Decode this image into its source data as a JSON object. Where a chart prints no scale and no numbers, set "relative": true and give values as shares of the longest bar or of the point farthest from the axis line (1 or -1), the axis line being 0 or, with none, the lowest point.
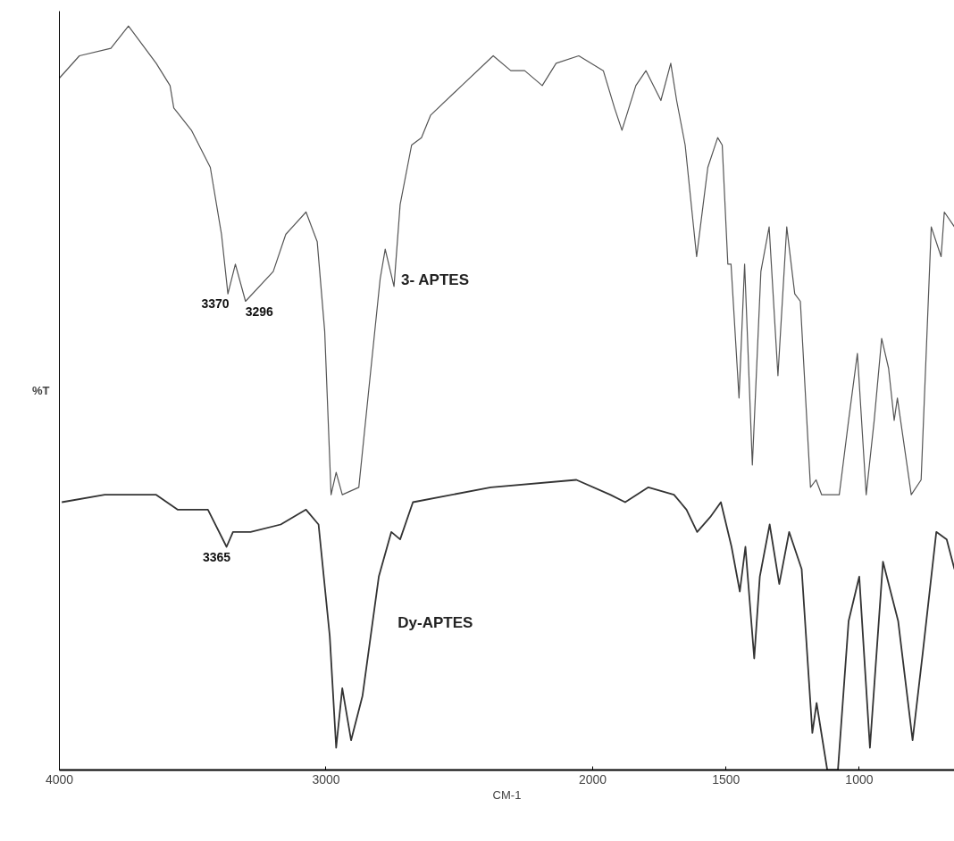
{
  "chart_data": {
    "type": "line",
    "relative": true,
    "xlabel": "CM-1",
    "ylabel": "%T",
    "xlim": [
      4000,
      643
    ],
    "xticks": [
      4000,
      3000,
      2000,
      1500,
      1000
    ],
    "grid": false,
    "marker": "none",
    "line_style": "solid",
    "series": [
      {
        "name": "3- APTES",
        "color": "#555555",
        "x": [
          4000,
          3925,
          3807,
          3741,
          3637,
          3585,
          3571,
          3505,
          3434,
          3392,
          3368,
          3340,
          3302,
          3198,
          3151,
          3075,
          3033,
          3005,
          2981,
          2962,
          2939,
          2877,
          2840,
          2797,
          2778,
          2745,
          2722,
          2679,
          2642,
          2608,
          2491,
          2373,
          2307,
          2255,
          2189,
          2137,
          2052,
          1960,
          1918,
          1890,
          1838,
          1800,
          1744,
          1707,
          1685,
          1653,
          1610,
          1568,
          1531,
          1514,
          1493,
          1481,
          1451,
          1430,
          1418,
          1401,
          1369,
          1338,
          1305,
          1272,
          1242,
          1221,
          1183,
          1162,
          1141,
          1075,
          1040,
          1007,
          974,
          944,
          916,
          890,
          869,
          857,
          805,
          768,
          730,
          693,
          681,
          643
        ],
        "values": [
          0.93,
          0.96,
          0.97,
          1.0,
          0.95,
          0.92,
          0.89,
          0.86,
          0.81,
          0.72,
          0.64,
          0.68,
          0.63,
          0.67,
          0.72,
          0.75,
          0.71,
          0.59,
          0.37,
          0.4,
          0.37,
          0.38,
          0.51,
          0.66,
          0.7,
          0.65,
          0.76,
          0.84,
          0.85,
          0.88,
          0.92,
          0.96,
          0.94,
          0.94,
          0.92,
          0.95,
          0.96,
          0.94,
          0.89,
          0.86,
          0.92,
          0.94,
          0.9,
          0.95,
          0.9,
          0.84,
          0.69,
          0.81,
          0.85,
          0.84,
          0.68,
          0.68,
          0.5,
          0.68,
          0.57,
          0.41,
          0.67,
          0.73,
          0.53,
          0.73,
          0.64,
          0.63,
          0.38,
          0.39,
          0.37,
          0.37,
          0.47,
          0.56,
          0.37,
          0.47,
          0.58,
          0.54,
          0.47,
          0.5,
          0.37,
          0.39,
          0.73,
          0.69,
          0.75,
          0.73
        ]
      },
      {
        "name": "Dy-APTES",
        "color": "#333333",
        "x": [
          3991,
          3830,
          3637,
          3557,
          3443,
          3373,
          3349,
          3283,
          3170,
          3075,
          3028,
          2986,
          2962,
          2939,
          2906,
          2863,
          2802,
          2755,
          2722,
          2674,
          2382,
          2061,
          1934,
          1878,
          1791,
          1695,
          1648,
          1608,
          1559,
          1519,
          1479,
          1448,
          1427,
          1394,
          1373,
          1336,
          1300,
          1263,
          1216,
          1176,
          1160,
          1120,
          1080,
          1040,
          1000,
          960,
          911,
          854,
          800,
          761,
          711,
          672,
          643
        ],
        "values": [
          0.36,
          0.37,
          0.37,
          0.35,
          0.35,
          0.3,
          0.32,
          0.32,
          0.33,
          0.35,
          0.33,
          0.18,
          0.03,
          0.11,
          0.04,
          0.1,
          0.26,
          0.32,
          0.31,
          0.36,
          0.38,
          0.39,
          0.37,
          0.36,
          0.38,
          0.37,
          0.35,
          0.32,
          0.34,
          0.36,
          0.3,
          0.24,
          0.3,
          0.15,
          0.26,
          0.33,
          0.25,
          0.32,
          0.27,
          0.05,
          0.09,
          0.0,
          0.0,
          0.2,
          0.26,
          0.03,
          0.28,
          0.2,
          0.04,
          0.16,
          0.32,
          0.31,
          0.27
        ]
      }
    ],
    "annotations": [
      {
        "text": "3370",
        "x": 3370,
        "y": 0.64
      },
      {
        "text": "3296",
        "x": 3296,
        "y": 0.63
      },
      {
        "text": "3365",
        "x": 3365,
        "y": 0.3
      }
    ]
  }
}
